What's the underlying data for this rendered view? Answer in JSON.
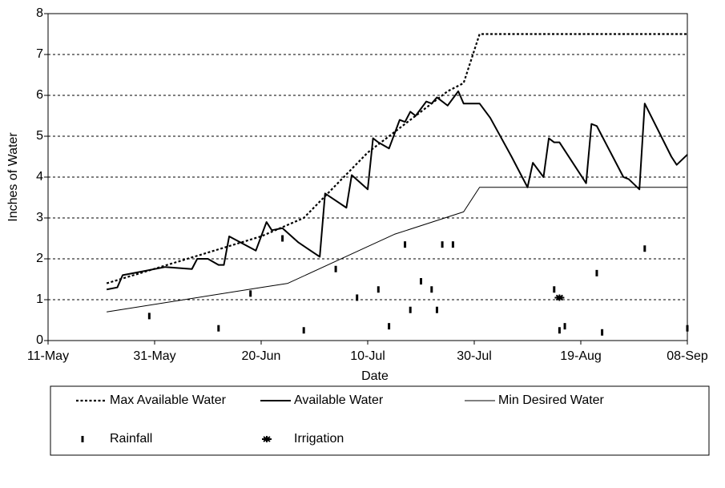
{
  "chart_data": {
    "type": "line",
    "xlabel": "Date",
    "ylabel": "Inches of Water",
    "xlim": [
      "11-May",
      "08-Sep"
    ],
    "xticks": [
      "11-May",
      "31-May",
      "20-Jun",
      "10-Jul",
      "30-Jul",
      "19-Aug",
      "08-Sep"
    ],
    "ylim": [
      0,
      8
    ],
    "yticks": [
      0,
      1,
      2,
      3,
      4,
      5,
      6,
      7,
      8
    ],
    "grid": true,
    "series": [
      {
        "name": "Max Available Water",
        "color": "#000000",
        "style": "dotted",
        "x": [
          "22-May",
          "20-Jun",
          "28-Jun",
          "10-Jul",
          "20-Jul",
          "25-Jul",
          "28-Jul",
          "31-Jul",
          "08-Sep"
        ],
        "values": [
          1.4,
          2.55,
          3.0,
          4.6,
          5.6,
          6.1,
          6.3,
          7.5,
          7.5
        ]
      },
      {
        "name": "Available Water",
        "color": "#000000",
        "style": "thick",
        "x": [
          "22-May",
          "24-May",
          "25-May",
          "27-May",
          "02-Jun",
          "07-Jun",
          "08-Jun",
          "10-Jun",
          "12-Jun",
          "13-Jun",
          "14-Jun",
          "19-Jun",
          "21-Jun",
          "22-Jun",
          "24-Jun",
          "27-Jun",
          "01-Jul",
          "02-Jul",
          "06-Jul",
          "07-Jul",
          "10-Jul",
          "11-Jul",
          "12-Jul",
          "14-Jul",
          "16-Jul",
          "17-Jul",
          "18-Jul",
          "19-Jul",
          "21-Jul",
          "22-Jul",
          "23-Jul",
          "25-Jul",
          "27-Jul",
          "28-Jul",
          "31-Jul",
          "02-Aug",
          "06-Aug",
          "09-Aug",
          "10-Aug",
          "12-Aug",
          "13-Aug",
          "14-Aug",
          "15-Aug",
          "20-Aug",
          "21-Aug",
          "22-Aug",
          "27-Aug",
          "28-Aug",
          "30-Aug",
          "31-Aug",
          "05-Sep",
          "06-Sep",
          "08-Sep"
        ],
        "values": [
          1.25,
          1.3,
          1.6,
          1.65,
          1.8,
          1.75,
          2.0,
          2.0,
          1.85,
          1.85,
          2.55,
          2.2,
          2.9,
          2.7,
          2.75,
          2.4,
          2.05,
          3.6,
          3.25,
          4.05,
          3.7,
          4.95,
          4.85,
          4.7,
          5.4,
          5.35,
          5.6,
          5.5,
          5.85,
          5.8,
          5.95,
          5.75,
          6.1,
          5.8,
          5.8,
          5.45,
          4.5,
          3.75,
          4.35,
          4.0,
          4.95,
          4.85,
          4.85,
          3.85,
          5.3,
          5.25,
          4.0,
          3.95,
          3.7,
          5.8,
          4.5,
          4.3,
          4.55
        ]
      },
      {
        "name": "Min Desired Water",
        "color": "#000000",
        "style": "thin",
        "x": [
          "22-May",
          "20-Jun",
          "25-Jun",
          "10-Jul",
          "15-Jul",
          "28-Jul",
          "31-Jul",
          "08-Sep"
        ],
        "values": [
          0.7,
          1.3,
          1.4,
          2.3,
          2.6,
          3.15,
          3.75,
          3.75
        ]
      },
      {
        "name": "Rainfall",
        "color": "#000000",
        "style": "bar-marker",
        "x": [
          "30-May",
          "12-Jun",
          "18-Jun",
          "24-Jun",
          "28-Jun",
          "04-Jul",
          "08-Jul",
          "12-Jul",
          "14-Jul",
          "17-Jul",
          "18-Jul",
          "20-Jul",
          "22-Jul",
          "23-Jul",
          "24-Jul",
          "26-Jul",
          "14-Aug",
          "15-Aug",
          "16-Aug",
          "22-Aug",
          "23-Aug",
          "31-Aug",
          "08-Sep"
        ],
        "values": [
          0.6,
          0.3,
          1.15,
          2.5,
          0.25,
          1.75,
          1.05,
          1.25,
          0.35,
          2.35,
          0.75,
          1.45,
          1.25,
          0.75,
          2.35,
          2.35,
          1.25,
          0.25,
          0.35,
          1.65,
          0.2,
          2.25,
          0.3
        ]
      },
      {
        "name": "Irrigation",
        "color": "#000000",
        "style": "star-marker",
        "x": [
          "15-Aug"
        ],
        "values": [
          1.05
        ]
      }
    ]
  }
}
